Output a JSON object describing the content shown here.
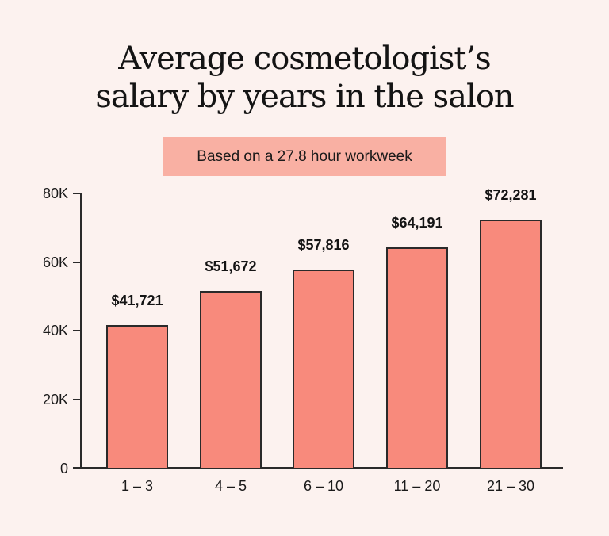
{
  "title": {
    "line1": "Average cosmetologist’s",
    "line2": "salary by years in the salon"
  },
  "subtitle": "Based on a 27.8 hour workweek",
  "colors": {
    "background": "#fcf2ef",
    "bar_fill": "#f88a7c",
    "bar_stroke": "#2a2a2a",
    "subtitle_bg": "#f9b0a3"
  },
  "axis": {
    "y_ticks": [
      "0",
      "20K",
      "40K",
      "60K",
      "80K"
    ],
    "x_ticks": [
      "1 – 3",
      "4 – 5",
      "6 – 10",
      "11 – 20",
      "21 – 30"
    ]
  },
  "bar_labels": [
    "$41,721",
    "$51,672",
    "$57,816",
    "$64,191",
    "$72,281"
  ],
  "chart_data": {
    "type": "bar",
    "title": "Average cosmetologist’s salary by years in the salon",
    "subtitle": "Based on a 27.8 hour workweek",
    "categories": [
      "1 – 3",
      "4 – 5",
      "6 – 10",
      "11 – 20",
      "21 – 30"
    ],
    "values": [
      41721,
      51672,
      57816,
      64191,
      72281
    ],
    "data_labels": [
      "$41,721",
      "$51,672",
      "$57,816",
      "$64,191",
      "$72,281"
    ],
    "xlabel": "",
    "ylabel": "",
    "ylim": [
      0,
      80000
    ],
    "yticks": [
      0,
      20000,
      40000,
      60000,
      80000
    ],
    "ytick_labels": [
      "0",
      "20K",
      "40K",
      "60K",
      "80K"
    ],
    "grid": false,
    "legend": null
  }
}
